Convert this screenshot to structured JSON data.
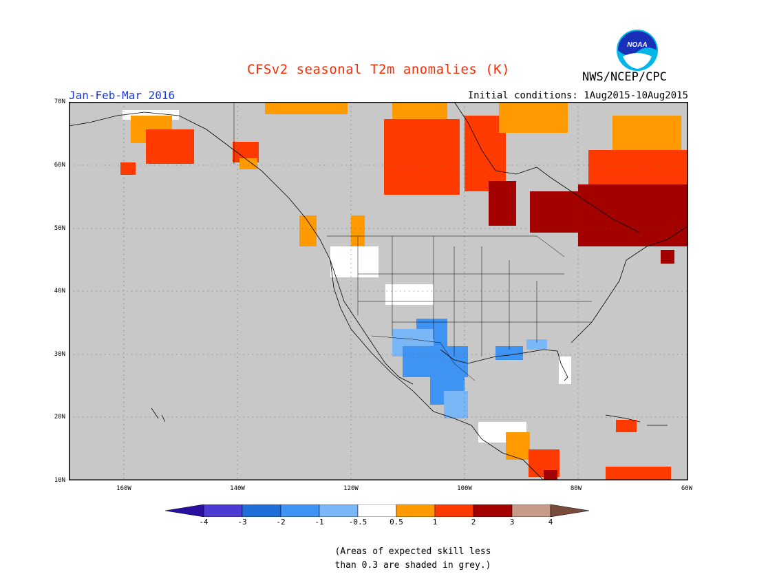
{
  "header": {
    "title": "CFSv2 seasonal T2m anomalies (K)",
    "period": "Jan-Feb-Mar 2016",
    "initial_conditions": "Initial conditions: 1Aug2015-10Aug2015",
    "organization": "NWS/NCEP/CPC",
    "logo_text": "NOAA"
  },
  "map": {
    "projection": "lat-lon",
    "lat_labels": [
      "70N",
      "60N",
      "50N",
      "40N",
      "30N",
      "20N",
      "10N"
    ],
    "lon_labels": [
      "160W",
      "140W",
      "120W",
      "100W",
      "80W",
      "60W"
    ],
    "background_color": "#c8c8c8",
    "grid": "dotted"
  },
  "legend": {
    "ticks": [
      "-4",
      "-3",
      "-2",
      "-1",
      "-0.5",
      "0.5",
      "1",
      "2",
      "3",
      "4"
    ],
    "colors": [
      "#2a0fa0",
      "#4b3bd3",
      "#1f6fd9",
      "#3f93f2",
      "#7ab7f7",
      "#ffffff",
      "#ff9a00",
      "#ff3a00",
      "#a30000",
      "#c79a8a",
      "#7a4a3a"
    ]
  },
  "note": {
    "line1": "(Areas of expected skill less",
    "line2": "than 0.3 are shaded in grey.)"
  }
}
